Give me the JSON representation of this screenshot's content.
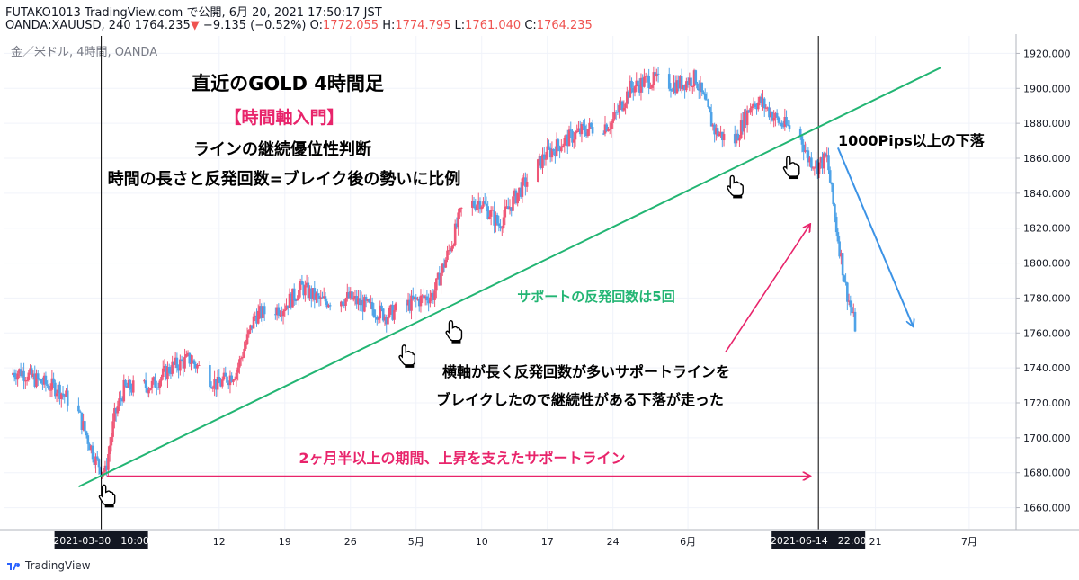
{
  "header": {
    "line1": "FUTAKO1013 TradingView.com で公開, 6月 20, 2021 17:50:17 JST",
    "symbol": "OANDA:XAUUSD, 240 1764.235",
    "change_arrow": "▼",
    "change": "−9.135 (−0.52%)",
    "o_label": "O:",
    "o_value": "1772.055",
    "h_label": "H:",
    "h_value": "1774.795",
    "l_label": "L:",
    "l_value": "1761.040",
    "c_label": "C:",
    "c_value": "1764.235"
  },
  "chart_data": {
    "type": "candlestick",
    "instrument": "金／米ドル, 4時間, OANDA",
    "ylim": [
      1650,
      1930
    ],
    "y_ticks": [
      1660,
      1680,
      1700,
      1720,
      1740,
      1760,
      1780,
      1800,
      1820,
      1840,
      1860,
      1880,
      1900,
      1920
    ],
    "y_tick_labels": [
      "1660.000",
      "1680.000",
      "1700.000",
      "1720.000",
      "1740.000",
      "1760.000",
      "1780.000",
      "1800.000",
      "1820.000",
      "1840.000",
      "1860.000",
      "1880.000",
      "1900.000",
      "1920.000"
    ],
    "x_ticks": [
      {
        "date": "2021-04-12",
        "label": "12"
      },
      {
        "date": "2021-04-19",
        "label": "19"
      },
      {
        "date": "2021-04-26",
        "label": "26"
      },
      {
        "date": "2021-05-03",
        "label": "5月"
      },
      {
        "date": "2021-05-10",
        "label": "10"
      },
      {
        "date": "2021-05-17",
        "label": "17"
      },
      {
        "date": "2021-05-24",
        "label": "24"
      },
      {
        "date": "2021-06-01",
        "label": "6月"
      },
      {
        "date": "2021-06-21",
        "label": "21"
      },
      {
        "date": "2021-07-01",
        "label": "7月"
      }
    ],
    "x_range": [
      "2021-03-20",
      "2021-07-06"
    ],
    "crosshair_labels": [
      {
        "date": "2021-03-30 10:00",
        "label": "2021-03-30　10:00"
      },
      {
        "date": "2021-06-14 22:00",
        "label": "2021-06-14　22:00"
      }
    ],
    "price_path": [
      [
        "2021-03-20",
        1736
      ],
      [
        "2021-03-22",
        1738
      ],
      [
        "2021-03-24",
        1732
      ],
      [
        "2021-03-26",
        1728
      ],
      [
        "2021-03-28",
        1716
      ],
      [
        "2021-03-30",
        1687
      ],
      [
        "2021-03-31",
        1680
      ],
      [
        "2021-04-01",
        1712
      ],
      [
        "2021-04-02",
        1728
      ],
      [
        "2021-04-05",
        1730
      ],
      [
        "2021-04-07",
        1740
      ],
      [
        "2021-04-09",
        1745
      ],
      [
        "2021-04-12",
        1730
      ],
      [
        "2021-04-14",
        1738
      ],
      [
        "2021-04-16",
        1770
      ],
      [
        "2021-04-19",
        1775
      ],
      [
        "2021-04-21",
        1786
      ],
      [
        "2021-04-23",
        1778
      ],
      [
        "2021-04-26",
        1780
      ],
      [
        "2021-04-28",
        1775
      ],
      [
        "2021-04-30",
        1770
      ],
      [
        "2021-05-03",
        1778
      ],
      [
        "2021-05-05",
        1782
      ],
      [
        "2021-05-07",
        1812
      ],
      [
        "2021-05-08",
        1830
      ],
      [
        "2021-05-10",
        1836
      ],
      [
        "2021-05-12",
        1822
      ],
      [
        "2021-05-14",
        1840
      ],
      [
        "2021-05-17",
        1862
      ],
      [
        "2021-05-19",
        1870
      ],
      [
        "2021-05-21",
        1876
      ],
      [
        "2021-05-24",
        1880
      ],
      [
        "2021-05-26",
        1900
      ],
      [
        "2021-05-28",
        1905
      ],
      [
        "2021-05-31",
        1902
      ],
      [
        "2021-06-02",
        1906
      ],
      [
        "2021-06-04",
        1876
      ],
      [
        "2021-06-06",
        1868
      ],
      [
        "2021-06-08",
        1892
      ],
      [
        "2021-06-09",
        1892
      ],
      [
        "2021-06-11",
        1880
      ],
      [
        "2021-06-13",
        1875
      ],
      [
        "2021-06-14",
        1860
      ],
      [
        "2021-06-15",
        1856
      ],
      [
        "2021-06-16",
        1860
      ],
      [
        "2021-06-17",
        1820
      ],
      [
        "2021-06-18",
        1786
      ],
      [
        "2021-06-19",
        1764
      ]
    ],
    "trendline": {
      "points": [
        [
          "2021-03-28",
          1672
        ],
        [
          "2021-06-28",
          1912
        ]
      ],
      "color": "#22b573"
    },
    "forecast_arrow": {
      "from": [
        "2021-06-17",
        1866
      ],
      "to": [
        "2021-06-25",
        1764
      ],
      "color": "#3c93e6"
    },
    "pink_arrow_up": {
      "from": [
        "2021-06-05",
        1749
      ],
      "to": [
        "2021-06-14",
        1822
      ],
      "color": "#e8246b"
    },
    "pink_arrow_right": {
      "from": [
        "2021-03-31",
        1678
      ],
      "to": [
        "2021-06-14",
        1678
      ],
      "color": "#e8246b"
    },
    "colors": {
      "up": "#ef5777",
      "down": "#4fa3e8",
      "grid": "#f0f3fa",
      "text": "#131722"
    },
    "touch_points": [
      [
        "2021-03-31",
        1673
      ],
      [
        "2021-05-02",
        1753
      ],
      [
        "2021-05-07",
        1767
      ],
      [
        "2021-06-06",
        1850
      ],
      [
        "2021-06-12",
        1861
      ]
    ],
    "annotations": [
      {
        "text": "直近のGOLD 4時間足",
        "color": "#000000"
      },
      {
        "text": "【時間軸入門】",
        "color": "#e8246b"
      },
      {
        "text": "ラインの継続優位性判断",
        "color": "#000000"
      },
      {
        "text": "時間の長さと反発回数=ブレイク後の勢いに比例",
        "color": "#000000"
      },
      {
        "text": "1000Pips以上の下落",
        "color": "#000000"
      },
      {
        "text": "サポートの反発回数は5回",
        "color": "#22b573"
      },
      {
        "text": "横軸が長く反発回数が多いサポートラインを",
        "color": "#000000"
      },
      {
        "text": "ブレイクしたので継続性がある下落が走った",
        "color": "#000000"
      },
      {
        "text": "2ヶ月半以上の期間、上昇を支えたサポートライン",
        "color": "#e8246b"
      }
    ]
  },
  "footer": {
    "brand": "TradingView"
  }
}
